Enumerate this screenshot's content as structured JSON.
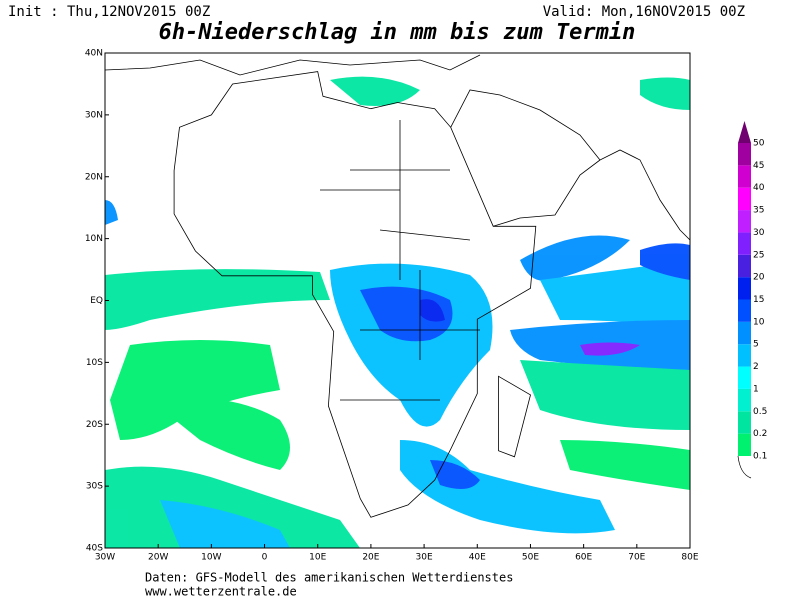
{
  "header": {
    "init": "Init : Thu,12NOV2015 00Z",
    "valid": "Valid: Mon,16NOV2015 00Z",
    "title": "6h-Niederschlag in mm bis zum Termin"
  },
  "map": {
    "x_labels": [
      "30W",
      "20W",
      "10W",
      "0",
      "10E",
      "20E",
      "30E",
      "40E",
      "50E",
      "60E",
      "70E",
      "80E"
    ],
    "y_labels": [
      "40N",
      "30N",
      "20N",
      "10N",
      "EQ",
      "10S",
      "20S",
      "30S",
      "40S"
    ]
  },
  "legend": {
    "labels": [
      "0.1",
      "0.2",
      "0.5",
      "1",
      "2",
      "5",
      "10",
      "15",
      "20",
      "25",
      "30",
      "35",
      "40",
      "45",
      "50"
    ],
    "colors": [
      "#00f070",
      "#00e6a0",
      "#00f0d0",
      "#00ffff",
      "#00c0ff",
      "#0090ff",
      "#0050ff",
      "#0020f0",
      "#4a20e0",
      "#8020ff",
      "#c020ff",
      "#ff00ff",
      "#d000d0",
      "#a000a0",
      "#700070"
    ]
  },
  "footer": {
    "source": "Daten: GFS-Modell des amerikanischen Wetterdienstes",
    "url": "www.wetterzentrale.de"
  }
}
